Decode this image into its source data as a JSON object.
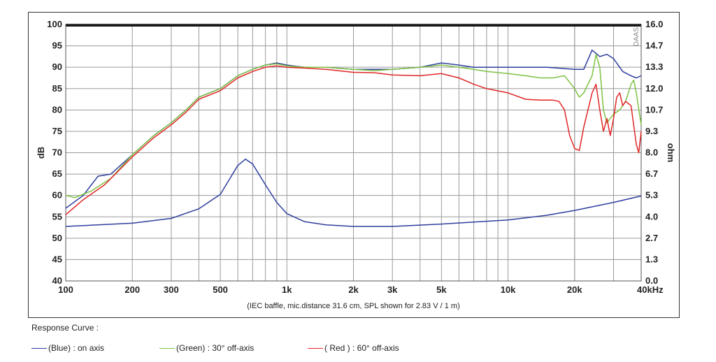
{
  "chart_data": {
    "type": "line",
    "watermark": "DAAS",
    "caption": "(IEC baffle, mic.distance 31.6 cm, SPL shown for 2.83 V / 1 m)",
    "x_scale": "log",
    "xlim": [
      100,
      40000
    ],
    "x_ticks": [
      {
        "value": 100,
        "label": "100"
      },
      {
        "value": 200,
        "label": "200"
      },
      {
        "value": 300,
        "label": "300"
      },
      {
        "value": 500,
        "label": "500"
      },
      {
        "value": 1000,
        "label": "1k"
      },
      {
        "value": 2000,
        "label": "2k"
      },
      {
        "value": 3000,
        "label": "3k"
      },
      {
        "value": 5000,
        "label": "5k"
      },
      {
        "value": 10000,
        "label": "10k"
      },
      {
        "value": 20000,
        "label": "20k"
      },
      {
        "value": 40000,
        "label": "40kHz"
      }
    ],
    "ylim_left": [
      40,
      100
    ],
    "ylabel_left": "dB",
    "y_ticks_left": [
      "40",
      "45",
      "50",
      "55",
      "60",
      "65",
      "70",
      "75",
      "80",
      "85",
      "90",
      "95",
      "100"
    ],
    "ylim_right": [
      0,
      16
    ],
    "ylabel_right": "ohm",
    "y_ticks_right": [
      {
        "value": 0,
        "label": "0.0"
      },
      {
        "value": 1.333,
        "label": "1.3"
      },
      {
        "value": 2.667,
        "label": "2.7"
      },
      {
        "value": 4,
        "label": "4.0"
      },
      {
        "value": 5.333,
        "label": "5.3"
      },
      {
        "value": 6.667,
        "label": "6.7"
      },
      {
        "value": 8,
        "label": "8.0"
      },
      {
        "value": 9.333,
        "label": "9.3"
      },
      {
        "value": 10.667,
        "label": "10.7"
      },
      {
        "value": 12,
        "label": "12.0"
      },
      {
        "value": 13.333,
        "label": "13.3"
      },
      {
        "value": 14.667,
        "label": "14.7"
      },
      {
        "value": 16,
        "label": "16.0"
      }
    ],
    "grid": true,
    "series": [
      {
        "key": "blue",
        "color": "#2e3e9e",
        "axis": "left",
        "points": [
          [
            100,
            57
          ],
          [
            120,
            60
          ],
          [
            140,
            64.5
          ],
          [
            160,
            65
          ],
          [
            200,
            69.5
          ],
          [
            250,
            74
          ],
          [
            300,
            77
          ],
          [
            350,
            80
          ],
          [
            400,
            83
          ],
          [
            500,
            85
          ],
          [
            600,
            88
          ],
          [
            700,
            89.5
          ],
          [
            800,
            90.5
          ],
          [
            900,
            91
          ],
          [
            1000,
            90.5
          ],
          [
            1200,
            90
          ],
          [
            1500,
            90
          ],
          [
            2000,
            89.5
          ],
          [
            2500,
            89.5
          ],
          [
            3000,
            89.5
          ],
          [
            4000,
            90
          ],
          [
            5000,
            91
          ],
          [
            6000,
            90.5
          ],
          [
            7000,
            90
          ],
          [
            8000,
            90
          ],
          [
            10000,
            90
          ],
          [
            12000,
            90
          ],
          [
            15000,
            90
          ],
          [
            20000,
            89.5
          ],
          [
            22000,
            89.5
          ],
          [
            24000,
            94
          ],
          [
            26000,
            92.5
          ],
          [
            28000,
            93
          ],
          [
            30000,
            92
          ],
          [
            33000,
            89
          ],
          [
            36000,
            88
          ],
          [
            38000,
            87.5
          ],
          [
            40000,
            88
          ]
        ]
      },
      {
        "key": "green",
        "color": "#7dc242",
        "axis": "left",
        "points": [
          [
            100,
            60
          ],
          [
            110,
            59.5
          ],
          [
            130,
            61
          ],
          [
            160,
            64
          ],
          [
            200,
            69.5
          ],
          [
            250,
            74
          ],
          [
            300,
            77
          ],
          [
            350,
            80
          ],
          [
            400,
            83
          ],
          [
            500,
            85
          ],
          [
            600,
            88
          ],
          [
            700,
            89.5
          ],
          [
            800,
            90.5
          ],
          [
            900,
            90.8
          ],
          [
            1000,
            90.3
          ],
          [
            1200,
            90
          ],
          [
            1500,
            90
          ],
          [
            2000,
            89.5
          ],
          [
            2500,
            89.2
          ],
          [
            3000,
            89.5
          ],
          [
            4000,
            90
          ],
          [
            5000,
            90.5
          ],
          [
            6000,
            90
          ],
          [
            7000,
            89.5
          ],
          [
            8000,
            89
          ],
          [
            10000,
            88.5
          ],
          [
            12000,
            88
          ],
          [
            14000,
            87.5
          ],
          [
            16000,
            87.5
          ],
          [
            18000,
            88
          ],
          [
            20000,
            85
          ],
          [
            21000,
            83
          ],
          [
            22000,
            84
          ],
          [
            24000,
            88
          ],
          [
            25000,
            93
          ],
          [
            26000,
            90
          ],
          [
            27000,
            80
          ],
          [
            28000,
            77
          ],
          [
            30000,
            79
          ],
          [
            32000,
            80
          ],
          [
            34000,
            82
          ],
          [
            36000,
            86
          ],
          [
            37000,
            87
          ],
          [
            38000,
            84
          ],
          [
            40000,
            76.5
          ]
        ]
      },
      {
        "key": "red",
        "color": "#e02626",
        "axis": "left",
        "points": [
          [
            100,
            55.5
          ],
          [
            120,
            59
          ],
          [
            150,
            62.5
          ],
          [
            200,
            69
          ],
          [
            250,
            73.5
          ],
          [
            300,
            76.5
          ],
          [
            350,
            79.5
          ],
          [
            400,
            82.5
          ],
          [
            500,
            84.5
          ],
          [
            600,
            87.5
          ],
          [
            700,
            89
          ],
          [
            800,
            90
          ],
          [
            900,
            90.3
          ],
          [
            1000,
            90
          ],
          [
            1200,
            89.8
          ],
          [
            1500,
            89.5
          ],
          [
            2000,
            88.8
          ],
          [
            2500,
            88.7
          ],
          [
            3000,
            88.2
          ],
          [
            4000,
            88
          ],
          [
            5000,
            88.5
          ],
          [
            6000,
            87.5
          ],
          [
            7000,
            86
          ],
          [
            8000,
            85
          ],
          [
            10000,
            84
          ],
          [
            12000,
            82.5
          ],
          [
            14000,
            82.3
          ],
          [
            16000,
            82.3
          ],
          [
            17000,
            82
          ],
          [
            18000,
            80
          ],
          [
            19000,
            74
          ],
          [
            20000,
            71
          ],
          [
            21000,
            70.5
          ],
          [
            22000,
            76
          ],
          [
            24000,
            84
          ],
          [
            25000,
            86
          ],
          [
            26000,
            80
          ],
          [
            27000,
            75
          ],
          [
            28000,
            78
          ],
          [
            29000,
            74
          ],
          [
            30000,
            78
          ],
          [
            31000,
            83
          ],
          [
            32000,
            84
          ],
          [
            33000,
            81
          ],
          [
            34000,
            82
          ],
          [
            36000,
            81
          ],
          [
            38000,
            72
          ],
          [
            39000,
            70
          ],
          [
            40000,
            75
          ]
        ]
      },
      {
        "key": "impedance",
        "color": "#2e3e9e",
        "axis": "right",
        "points": [
          [
            100,
            3.4
          ],
          [
            200,
            3.6
          ],
          [
            300,
            3.9
          ],
          [
            400,
            4.5
          ],
          [
            500,
            5.4
          ],
          [
            600,
            7.2
          ],
          [
            650,
            7.6
          ],
          [
            700,
            7.3
          ],
          [
            800,
            6.0
          ],
          [
            900,
            4.9
          ],
          [
            1000,
            4.2
          ],
          [
            1200,
            3.7
          ],
          [
            1500,
            3.5
          ],
          [
            2000,
            3.4
          ],
          [
            3000,
            3.4
          ],
          [
            5000,
            3.55
          ],
          [
            10000,
            3.8
          ],
          [
            15000,
            4.1
          ],
          [
            20000,
            4.4
          ],
          [
            30000,
            4.9
          ],
          [
            40000,
            5.3
          ]
        ]
      }
    ]
  },
  "legend": {
    "title": "Response Curve :",
    "items": [
      {
        "color": "#2e3e9e",
        "label": "(Blue)  : on axis"
      },
      {
        "color": "#7dc242",
        "label": "(Green) : 30° off-axis"
      },
      {
        "color": "#e02626",
        "label": "( Red ) : 60° off-axis"
      }
    ]
  }
}
